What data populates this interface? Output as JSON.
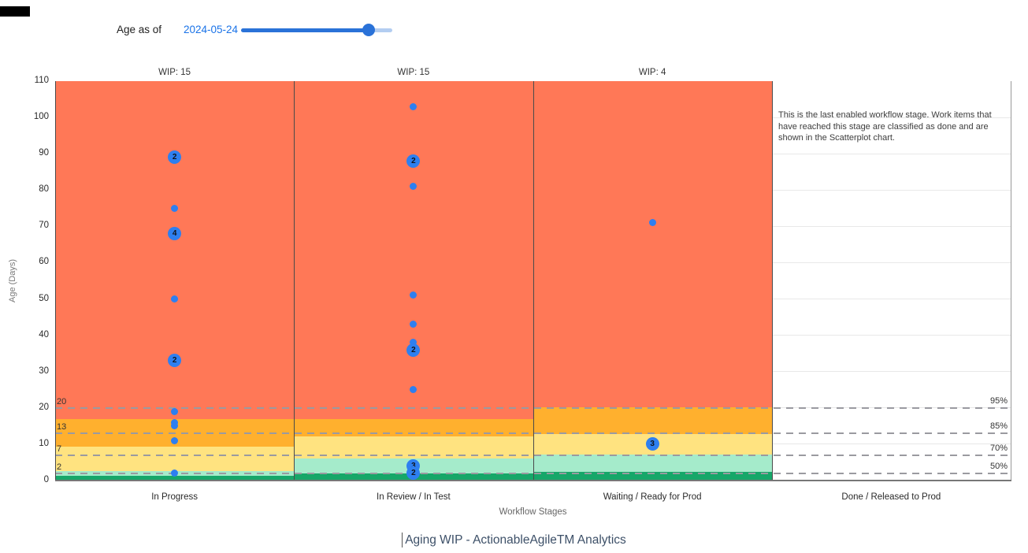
{
  "header": {
    "age_as_of_label": "Age as of",
    "date_value": "2024-05-24",
    "slider": {
      "fraction": 0.845
    }
  },
  "colors": {
    "red": "#FF7857",
    "orange": "#FFB02E",
    "yellow": "#FFE380",
    "mint": "#A5EBCB",
    "green": "#16A769",
    "dot_blue": "#2E7FF0",
    "slider_blue": "#2A72D8",
    "slider_tail": "#B3CDF1",
    "date_blue": "#1A73E8",
    "title_color": "#3D5068"
  },
  "chart_data": {
    "type": "scatter",
    "title": "Aging WIP - ActionableAgileTM Analytics",
    "xlabel": "Workflow Stages",
    "ylabel": "Age (Days)",
    "ylim": [
      0,
      110
    ],
    "y_ticks": [
      0,
      10,
      20,
      30,
      40,
      50,
      60,
      70,
      80,
      90,
      100,
      110
    ],
    "grid": "horizontal, visible in last stage only",
    "annotation": "This is the last enabled workflow stage. Work items that have reached this stage are classified as done and are shown in the Scatterplot chart.",
    "percentiles": [
      {
        "pct_label": "95%",
        "value_label": "20",
        "age": 20
      },
      {
        "pct_label": "85%",
        "value_label": "13",
        "age": 13
      },
      {
        "pct_label": "70%",
        "value_label": "7",
        "age": 7
      },
      {
        "pct_label": "50%",
        "value_label": "2",
        "age": 2
      }
    ],
    "stages": [
      {
        "label": "In Progress",
        "wip_label": "WIP: 15",
        "wip": 15,
        "bands": [
          {
            "color": "green",
            "from": 0,
            "to": 1.4
          },
          {
            "color": "mint",
            "from": 1.4,
            "to": 2.6
          },
          {
            "color": "yellow",
            "from": 2.6,
            "to": 9.3
          },
          {
            "color": "orange",
            "from": 9.3,
            "to": 17
          },
          {
            "color": "red",
            "from": 17,
            "to": 110
          }
        ],
        "points": [
          {
            "age": 89,
            "count": 2
          },
          {
            "age": 75,
            "count": 1
          },
          {
            "age": 68,
            "count": 4
          },
          {
            "age": 50,
            "count": 1
          },
          {
            "age": 33,
            "count": 2
          },
          {
            "age": 19,
            "count": 1
          },
          {
            "age": 16,
            "count": 1
          },
          {
            "age": 15,
            "count": 1
          },
          {
            "age": 11,
            "count": 1
          },
          {
            "age": 2,
            "count": 1
          }
        ]
      },
      {
        "label": "In Review / In Test",
        "wip_label": "WIP: 15",
        "wip": 15,
        "bands": [
          {
            "color": "green",
            "from": 0,
            "to": 2
          },
          {
            "color": "mint",
            "from": 2,
            "to": 6.1
          },
          {
            "color": "yellow",
            "from": 6.1,
            "to": 12.2
          },
          {
            "color": "orange",
            "from": 12.2,
            "to": 17
          },
          {
            "color": "red",
            "from": 17,
            "to": 110
          }
        ],
        "points": [
          {
            "age": 103,
            "count": 1
          },
          {
            "age": 88,
            "count": 2
          },
          {
            "age": 81,
            "count": 1
          },
          {
            "age": 51,
            "count": 1
          },
          {
            "age": 43,
            "count": 1
          },
          {
            "age": 38,
            "count": 1
          },
          {
            "age": 36,
            "count": 2
          },
          {
            "age": 25,
            "count": 1
          },
          {
            "age": 4,
            "count": 3
          },
          {
            "age": 2,
            "count": 2
          }
        ]
      },
      {
        "label": "Waiting / Ready for Prod",
        "wip_label": "WIP: 4",
        "wip": 4,
        "bands": [
          {
            "color": "green",
            "from": 0,
            "to": 2.4
          },
          {
            "color": "mint",
            "from": 2.4,
            "to": 7.1
          },
          {
            "color": "yellow",
            "from": 7.1,
            "to": 12.7
          },
          {
            "color": "orange",
            "from": 12.7,
            "to": 20.2
          },
          {
            "color": "red",
            "from": 20.2,
            "to": 110
          }
        ],
        "points": [
          {
            "age": 71,
            "count": 1
          },
          {
            "age": 10,
            "count": 3
          }
        ]
      },
      {
        "label": "Done / Released to Prod",
        "wip_label": "",
        "bands": [],
        "points": []
      }
    ]
  }
}
